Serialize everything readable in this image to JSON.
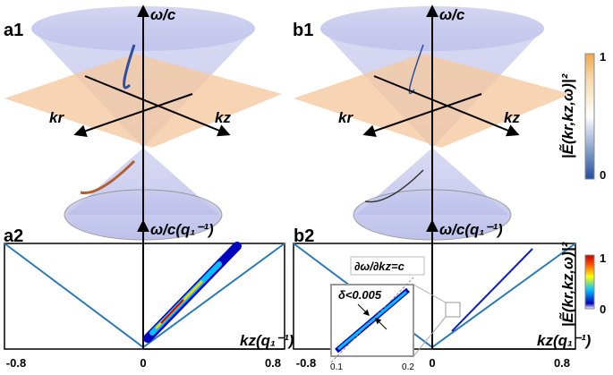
{
  "panels": {
    "a1": "a1",
    "b1": "b1",
    "a2": "a2",
    "b2": "b2"
  },
  "top_axes": {
    "omega": "ω/c",
    "kr": "kr",
    "kz": "kz"
  },
  "bottom_axes": {
    "omega": "ω/c(q₁⁻¹)",
    "kz": "kz(q₁⁻¹)",
    "ticks": [
      "-0.8",
      "0",
      "0.8"
    ]
  },
  "colorbar_top": {
    "max": "1",
    "min": "0",
    "label": "|Ẽ(kr,kz,ω)|²"
  },
  "colorbar_bottom": {
    "max": "1",
    "min": "0",
    "label": "|Ẽ(kr,kz,ω)|²"
  },
  "inset": {
    "slope": "∂ω/∂kz=c",
    "width": "δ<0.005",
    "ticks": [
      "0.1",
      "0.2"
    ]
  }
}
